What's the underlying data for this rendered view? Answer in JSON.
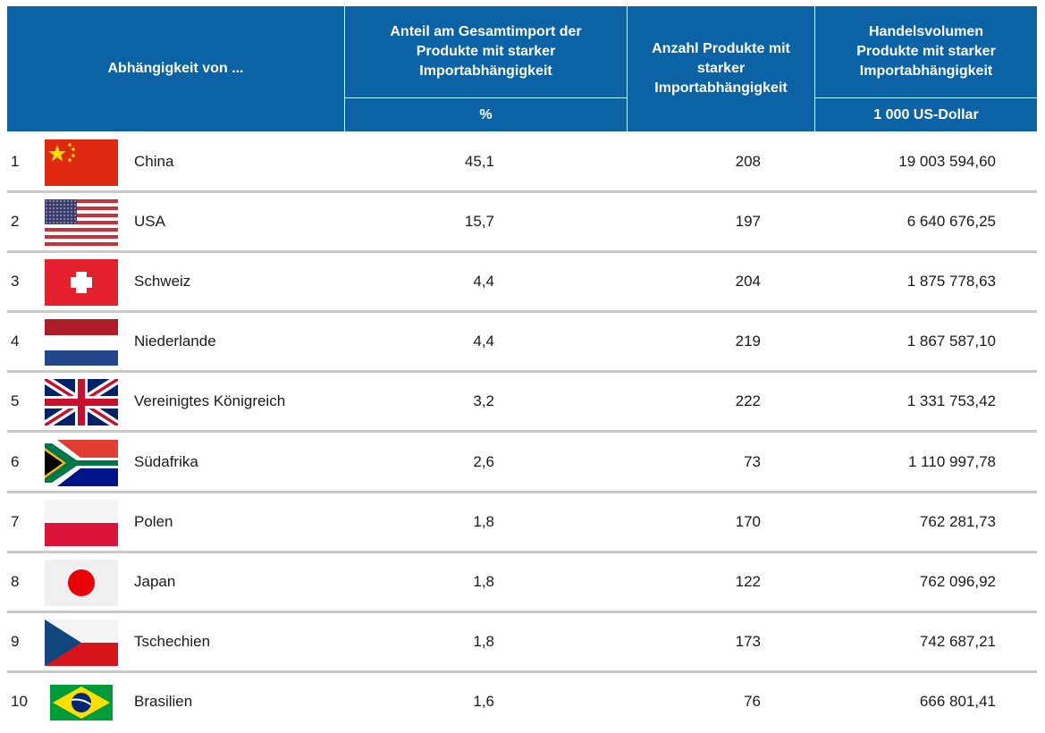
{
  "header": {
    "columns": [
      "Abhängigkeit von ...",
      "Anteil am Gesamtimport der Produkte mit starker Importabhängigkeit",
      "Anzahl Produkte mit starker Importabhängigkeit",
      "Handelsvolumen Produkte mit starker Importabhängigkeit"
    ],
    "units": [
      "%",
      "1 000 US-Dollar"
    ]
  },
  "table": {
    "rows": [
      [
        "1",
        "China",
        "45,1",
        "208",
        "19 003 594,60"
      ],
      [
        "2",
        "USA",
        "15,7",
        "197",
        "6 640 676,25"
      ],
      [
        "3",
        "Schweiz",
        "4,4",
        "204",
        "1 875 778,63"
      ],
      [
        "4",
        "Niederlande",
        "4,4",
        "219",
        "1 867 587,10"
      ],
      [
        "5",
        "Vereinigtes Königreich",
        "3,2",
        "222",
        "1 331 753,42"
      ],
      [
        "6",
        "Südafrika",
        "2,6",
        "73",
        "1 110 997,78"
      ],
      [
        "7",
        "Polen",
        "1,8",
        "170",
        "762 281,73"
      ],
      [
        "8",
        "Japan",
        "1,8",
        "122",
        "762 096,92"
      ],
      [
        "9",
        "Tschechien",
        "1,8",
        "173",
        "742 687,21"
      ],
      [
        "10",
        "Brasilien",
        "1,6",
        "76",
        "666 801,41"
      ]
    ]
  }
}
